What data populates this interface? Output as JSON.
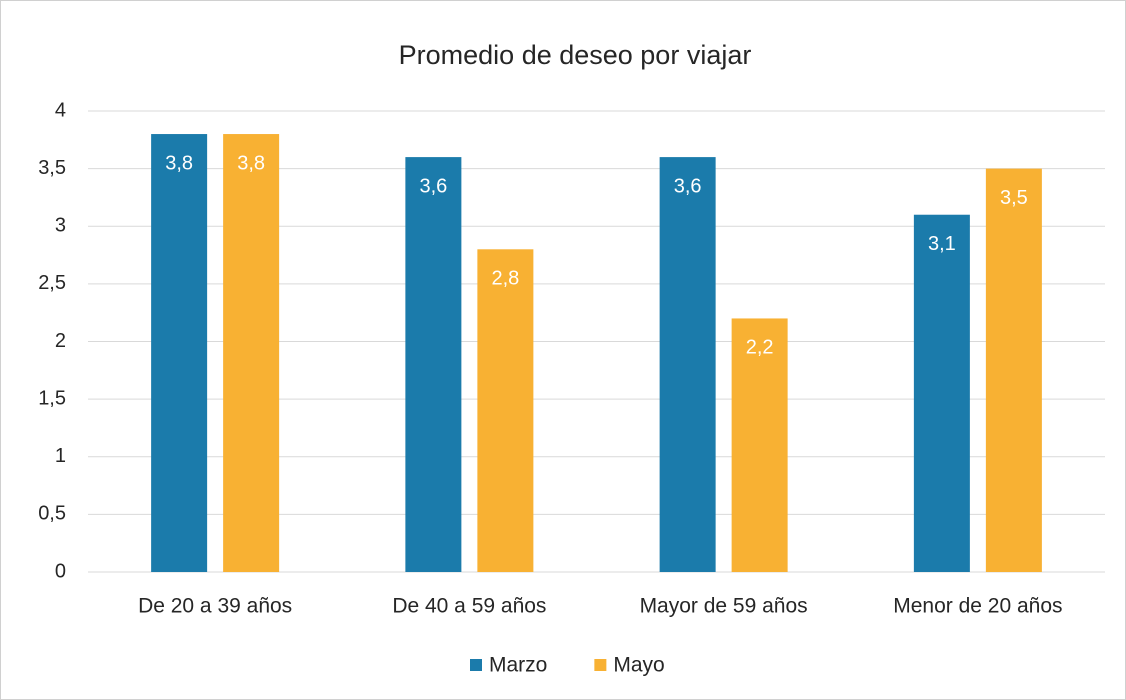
{
  "chart_data": {
    "type": "bar",
    "title": "Promedio de deseo por viajar",
    "categories": [
      "De 20 a 39 años",
      "De 40 a 59 años",
      "Mayor de 59 años",
      "Menor de 20 años"
    ],
    "series": [
      {
        "name": "Marzo",
        "color": "#1b7bab",
        "values": [
          3.8,
          3.6,
          3.6,
          3.1
        ],
        "value_labels": [
          "3,8",
          "3,6",
          "3,6",
          "3,1"
        ]
      },
      {
        "name": "Mayo",
        "color": "#f8b133",
        "values": [
          3.8,
          2.8,
          2.2,
          3.5
        ],
        "value_labels": [
          "3,8",
          "2,8",
          "2,2",
          "3,5"
        ]
      }
    ],
    "ylim": [
      0,
      4
    ],
    "yticks": [
      0,
      {
        "value": 0.5,
        "label": "0,5"
      },
      1,
      {
        "value": 1.5,
        "label": "1,5"
      },
      2,
      {
        "value": 2.5,
        "label": "2,5"
      },
      3,
      {
        "value": 3.5,
        "label": "3,5"
      },
      4
    ],
    "grid": true,
    "legend": "bottom"
  }
}
